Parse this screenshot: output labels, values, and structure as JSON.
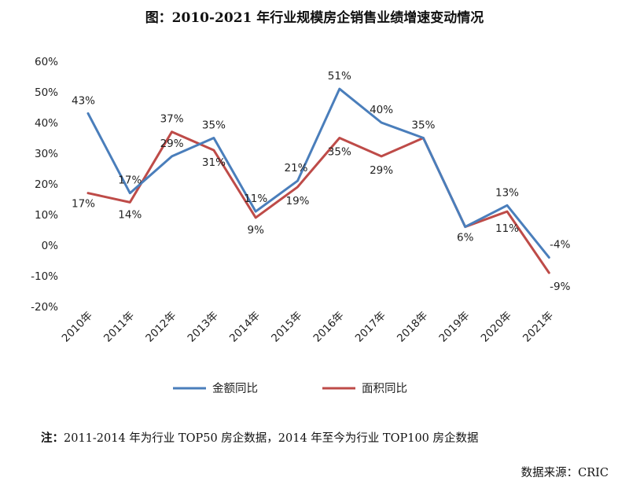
{
  "title": "图：2010-2021 年行业规模房企销售业绩增速变动情况",
  "note_prefix": "注：",
  "note_text": "2011-2014 年为行业 TOP50 房企数据，2014 年至今为行业 TOP100 房企数据",
  "source": "数据来源：CRIC",
  "chart_data": {
    "type": "line",
    "title": "图：2010-2021 年行业规模房企销售业绩增速变动情况",
    "categories": [
      "2010年",
      "2011年",
      "2012年",
      "2013年",
      "2014年",
      "2015年",
      "2016年",
      "2017年",
      "2018年",
      "2019年",
      "2020年",
      "2021年"
    ],
    "ylim": [
      -20,
      60
    ],
    "yticks": [
      -20,
      -10,
      0,
      10,
      20,
      30,
      40,
      50,
      60
    ],
    "ytick_labels": [
      "-20%",
      "-10%",
      "0%",
      "10%",
      "20%",
      "30%",
      "40%",
      "50%",
      "60%"
    ],
    "grid": false,
    "legend_position": "bottom",
    "series": [
      {
        "name": "金额同比",
        "color": "#4a7ebb",
        "values": [
          43,
          17,
          29,
          35,
          11,
          21,
          51,
          40,
          35,
          6,
          13,
          -4
        ],
        "labels": [
          "43%",
          "17%",
          "29%",
          "35%",
          "11%",
          "21%",
          "51%",
          "40%",
          "35%",
          "6%",
          "13%",
          "-4%"
        ]
      },
      {
        "name": "面积同比",
        "color": "#be4b48",
        "values": [
          17,
          14,
          37,
          31,
          9,
          19,
          35,
          29,
          35,
          6,
          11,
          -9
        ],
        "labels": [
          "17%",
          "14%",
          "37%",
          "31%",
          "9%",
          "19%",
          "35%",
          "29%",
          "35%",
          "6%",
          "11%",
          "-9%"
        ]
      }
    ]
  }
}
